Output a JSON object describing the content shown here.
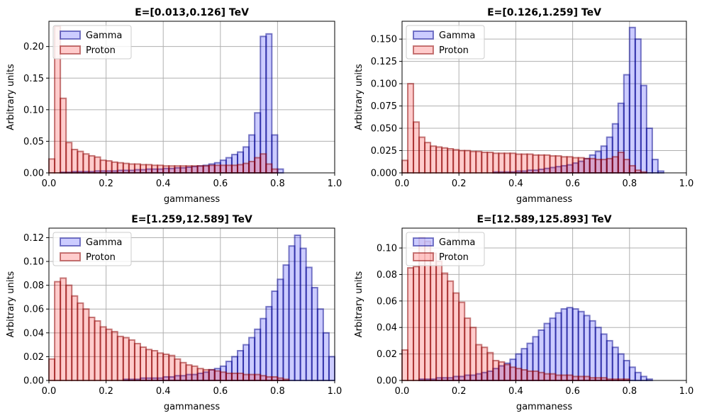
{
  "colors": {
    "gamma_fill": "#0000ff",
    "gamma_edge": "#00008b",
    "proton_fill": "#ff0000",
    "proton_edge": "#8b0000",
    "grid": "#b0b0b0"
  },
  "chart_data": [
    {
      "type": "bar",
      "subtype": "overlaid-step-histogram",
      "title": "E=[0.013,0.126] TeV",
      "xlabel": "gammaness",
      "ylabel": "Arbitrary units",
      "xlim": [
        0,
        1
      ],
      "ylim": [
        0,
        0.24
      ],
      "xticks": [
        "0.0",
        "0.2",
        "0.4",
        "0.6",
        "0.8",
        "1.0"
      ],
      "yticks": [
        "0.00",
        "0.05",
        "0.10",
        "0.15",
        "0.20"
      ],
      "ytick_values": [
        0,
        0.05,
        0.1,
        0.15,
        0.2
      ],
      "grid": true,
      "legend_position": "upper-left",
      "bin_width": 0.02,
      "series": [
        {
          "name": "Gamma",
          "values": [
            0,
            0,
            0.001,
            0.001,
            0.002,
            0.002,
            0.002,
            0.002,
            0.003,
            0.003,
            0.003,
            0.003,
            0.004,
            0.004,
            0.004,
            0.005,
            0.005,
            0.006,
            0.006,
            0.006,
            0.007,
            0.007,
            0.008,
            0.008,
            0.009,
            0.01,
            0.011,
            0.012,
            0.014,
            0.016,
            0.02,
            0.024,
            0.029,
            0.033,
            0.041,
            0.06,
            0.095,
            0.216,
            0.22,
            0.06,
            0.006,
            0,
            0,
            0,
            0,
            0,
            0,
            0,
            0,
            0
          ]
        },
        {
          "name": "Proton",
          "values": [
            0.022,
            0.232,
            0.118,
            0.048,
            0.037,
            0.034,
            0.03,
            0.027,
            0.025,
            0.02,
            0.019,
            0.017,
            0.016,
            0.015,
            0.014,
            0.014,
            0.013,
            0.013,
            0.012,
            0.012,
            0.011,
            0.011,
            0.011,
            0.011,
            0.011,
            0.011,
            0.011,
            0.011,
            0.012,
            0.012,
            0.012,
            0.012,
            0.012,
            0.013,
            0.015,
            0.018,
            0.024,
            0.03,
            0.014,
            0.006,
            0,
            0,
            0,
            0,
            0,
            0,
            0,
            0,
            0,
            0
          ]
        }
      ]
    },
    {
      "type": "bar",
      "subtype": "overlaid-step-histogram",
      "title": "E=[0.126,1.259] TeV",
      "xlabel": "gammaness",
      "ylabel": "Arbitrary units",
      "xlim": [
        0,
        1
      ],
      "ylim": [
        0,
        0.17
      ],
      "xticks": [
        "0.0",
        "0.2",
        "0.4",
        "0.6",
        "0.8",
        "1.0"
      ],
      "yticks": [
        "0.000",
        "0.025",
        "0.050",
        "0.075",
        "0.100",
        "0.125",
        "0.150"
      ],
      "ytick_values": [
        0,
        0.025,
        0.05,
        0.075,
        0.1,
        0.125,
        0.15
      ],
      "grid": true,
      "legend_position": "upper-left",
      "bin_width": 0.02,
      "series": [
        {
          "name": "Gamma",
          "values": [
            0,
            0,
            0,
            0,
            0,
            0,
            0,
            0,
            0,
            0,
            0,
            0,
            0,
            0,
            0,
            0,
            0.001,
            0.001,
            0.001,
            0.001,
            0.002,
            0.002,
            0.003,
            0.003,
            0.004,
            0.005,
            0.006,
            0.007,
            0.008,
            0.009,
            0.011,
            0.013,
            0.016,
            0.02,
            0.024,
            0.03,
            0.04,
            0.055,
            0.078,
            0.11,
            0.163,
            0.15,
            0.098,
            0.05,
            0.015,
            0.002,
            0,
            0,
            0,
            0
          ]
        },
        {
          "name": "Proton",
          "values": [
            0.014,
            0.1,
            0.057,
            0.04,
            0.034,
            0.03,
            0.029,
            0.028,
            0.027,
            0.026,
            0.025,
            0.025,
            0.024,
            0.024,
            0.023,
            0.023,
            0.022,
            0.022,
            0.022,
            0.022,
            0.021,
            0.021,
            0.021,
            0.02,
            0.02,
            0.02,
            0.019,
            0.019,
            0.018,
            0.018,
            0.017,
            0.017,
            0.016,
            0.016,
            0.015,
            0.015,
            0.016,
            0.018,
            0.023,
            0.015,
            0.008,
            0.003,
            0.001,
            0,
            0,
            0,
            0,
            0,
            0,
            0
          ]
        }
      ]
    },
    {
      "type": "bar",
      "subtype": "overlaid-step-histogram",
      "title": "E=[1.259,12.589] TeV",
      "xlabel": "gammaness",
      "ylabel": "Arbitrary units",
      "xlim": [
        0,
        1
      ],
      "ylim": [
        0,
        0.128
      ],
      "xticks": [
        "0.0",
        "0.2",
        "0.4",
        "0.6",
        "0.8",
        "1.0"
      ],
      "yticks": [
        "0.00",
        "0.02",
        "0.04",
        "0.06",
        "0.08",
        "0.10",
        "0.12"
      ],
      "ytick_values": [
        0,
        0.02,
        0.04,
        0.06,
        0.08,
        0.1,
        0.12
      ],
      "grid": true,
      "legend_position": "upper-left",
      "bin_width": 0.02,
      "series": [
        {
          "name": "Gamma",
          "values": [
            0,
            0,
            0,
            0,
            0,
            0,
            0,
            0,
            0,
            0,
            0,
            0,
            0,
            0.001,
            0.001,
            0.001,
            0.002,
            0.002,
            0.002,
            0.002,
            0.003,
            0.003,
            0.004,
            0.004,
            0.005,
            0.005,
            0.006,
            0.007,
            0.009,
            0.01,
            0.012,
            0.016,
            0.02,
            0.025,
            0.03,
            0.036,
            0.043,
            0.052,
            0.062,
            0.075,
            0.085,
            0.097,
            0.113,
            0.122,
            0.111,
            0.095,
            0.078,
            0.06,
            0.04,
            0.02
          ]
        },
        {
          "name": "Proton",
          "values": [
            0.018,
            0.083,
            0.086,
            0.08,
            0.071,
            0.065,
            0.06,
            0.053,
            0.05,
            0.045,
            0.043,
            0.041,
            0.037,
            0.036,
            0.034,
            0.031,
            0.028,
            0.026,
            0.025,
            0.023,
            0.022,
            0.021,
            0.018,
            0.015,
            0.013,
            0.012,
            0.01,
            0.009,
            0.009,
            0.008,
            0.007,
            0.006,
            0.006,
            0.006,
            0.005,
            0.005,
            0.005,
            0.004,
            0.003,
            0.003,
            0.002,
            0.001,
            0,
            0,
            0,
            0,
            0,
            0,
            0,
            0
          ]
        }
      ]
    },
    {
      "type": "bar",
      "subtype": "overlaid-step-histogram",
      "title": "E=[12.589,125.893] TeV",
      "xlabel": "gammaness",
      "ylabel": "Arbitrary units",
      "xlim": [
        0,
        1
      ],
      "ylim": [
        0,
        0.115
      ],
      "xticks": [
        "0.0",
        "0.2",
        "0.4",
        "0.6",
        "0.8",
        "1.0"
      ],
      "yticks": [
        "0.00",
        "0.02",
        "0.04",
        "0.06",
        "0.08",
        "0.10"
      ],
      "ytick_values": [
        0,
        0.02,
        0.04,
        0.06,
        0.08,
        0.1
      ],
      "grid": true,
      "legend_position": "upper-left",
      "bin_width": 0.02,
      "series": [
        {
          "name": "Gamma",
          "values": [
            0,
            0,
            0,
            0.001,
            0.001,
            0.001,
            0.002,
            0.002,
            0.002,
            0.003,
            0.003,
            0.004,
            0.004,
            0.005,
            0.006,
            0.007,
            0.009,
            0.011,
            0.013,
            0.016,
            0.02,
            0.024,
            0.028,
            0.033,
            0.038,
            0.043,
            0.047,
            0.051,
            0.054,
            0.055,
            0.054,
            0.052,
            0.049,
            0.045,
            0.04,
            0.035,
            0.03,
            0.025,
            0.02,
            0.015,
            0.01,
            0.006,
            0.003,
            0.001,
            0,
            0,
            0,
            0,
            0,
            0
          ]
        },
        {
          "name": "Proton",
          "values": [
            0.023,
            0.085,
            0.086,
            0.108,
            0.105,
            0.096,
            0.09,
            0.081,
            0.075,
            0.066,
            0.059,
            0.047,
            0.04,
            0.027,
            0.025,
            0.021,
            0.015,
            0.014,
            0.012,
            0.01,
            0.009,
            0.008,
            0.007,
            0.007,
            0.006,
            0.005,
            0.005,
            0.004,
            0.004,
            0.004,
            0.003,
            0.003,
            0.003,
            0.002,
            0.002,
            0.002,
            0.001,
            0.001,
            0.001,
            0.001,
            0,
            0,
            0,
            0,
            0,
            0,
            0,
            0,
            0,
            0
          ]
        }
      ]
    }
  ]
}
